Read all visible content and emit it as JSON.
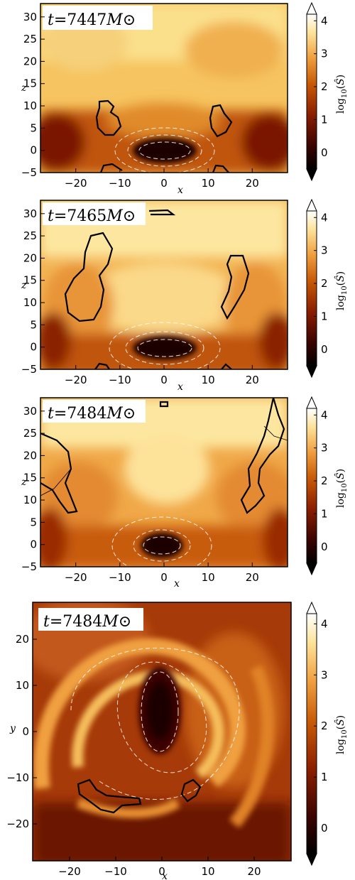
{
  "chart_data": [
    {
      "type": "heatmap",
      "panel": "x-z slice",
      "title": "t=7447M⊙",
      "time_label_prefix": "t=",
      "time_value": "7447",
      "time_unit": "M⊙",
      "xlabel": "x",
      "ylabel": "z",
      "xlim": [
        -28,
        28
      ],
      "ylim": [
        -5,
        33
      ],
      "xticks": [
        -20,
        -10,
        0,
        10,
        20
      ],
      "yticks": [
        -5,
        0,
        5,
        10,
        15,
        20,
        25,
        30
      ],
      "colorbar": {
        "label": "log10(Ŝ)",
        "ticks": [
          0,
          1,
          2,
          3,
          4
        ],
        "range": [
          -0.5,
          4.2
        ]
      },
      "colormap": [
        "#000000",
        "#3a0400",
        "#8a1e00",
        "#c85a06",
        "#f0a040",
        "#fde39a",
        "#ffffff"
      ]
    },
    {
      "type": "heatmap",
      "panel": "x-z slice",
      "title": "t=7465M⊙",
      "time_label_prefix": "t=",
      "time_value": "7465",
      "time_unit": "M⊙",
      "xlabel": "x",
      "ylabel": "z",
      "xlim": [
        -28,
        28
      ],
      "ylim": [
        -5,
        33
      ],
      "xticks": [
        -20,
        -10,
        0,
        10,
        20
      ],
      "yticks": [
        -5,
        0,
        5,
        10,
        15,
        20,
        25,
        30
      ],
      "colorbar": {
        "label": "log10(Ŝ)",
        "ticks": [
          0,
          1,
          2,
          3,
          4
        ],
        "range": [
          -0.5,
          4.2
        ]
      }
    },
    {
      "type": "heatmap",
      "panel": "x-z slice",
      "title": "t=7484M⊙",
      "time_label_prefix": "t=",
      "time_value": "7484",
      "time_unit": "M⊙",
      "xlabel": "x",
      "ylabel": "z",
      "xlim": [
        -28,
        28
      ],
      "ylim": [
        -5,
        33
      ],
      "xticks": [
        -20,
        -10,
        0,
        10,
        20
      ],
      "yticks": [
        -5,
        0,
        5,
        10,
        15,
        20,
        25,
        30
      ],
      "colorbar": {
        "label": "log10(Ŝ)",
        "ticks": [
          0,
          1,
          2,
          3,
          4
        ],
        "range": [
          -0.5,
          4.2
        ]
      }
    },
    {
      "type": "heatmap",
      "panel": "x-y slice",
      "title": "t=7484M⊙",
      "time_label_prefix": "t=",
      "time_value": "7484",
      "time_unit": "M⊙",
      "xlabel": "x",
      "ylabel": "y",
      "xlim": [
        -28,
        28
      ],
      "ylim": [
        -28,
        28
      ],
      "xticks": [
        -20,
        -10,
        0,
        10,
        20
      ],
      "yticks": [
        -20,
        -10,
        0,
        10,
        20
      ],
      "colorbar": {
        "label": "log10(Ŝ)",
        "ticks": [
          0,
          1,
          2,
          3,
          4
        ],
        "range": [
          -0.5,
          4.2
        ]
      }
    }
  ]
}
